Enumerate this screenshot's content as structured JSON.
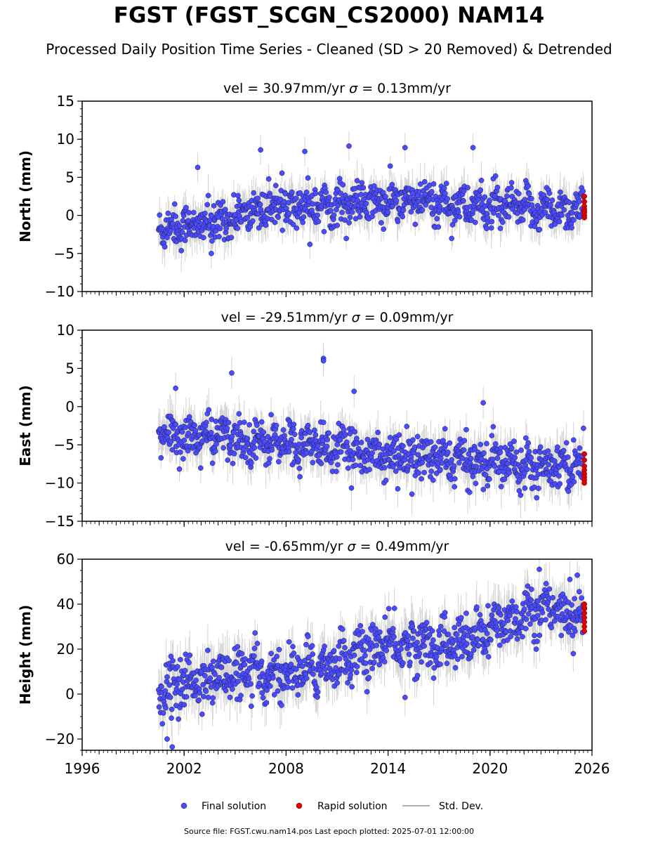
{
  "title": "FGST (FGST_SCGN_CS2000) NAM14",
  "subtitle": "Processed Daily Position Time Series - Cleaned (SD > 20 Removed) & Detrended",
  "footer": "Source file: FGST.cwu.nam14.pos  Last epoch plotted: 2025-07-01 12:00:00",
  "legend": {
    "final": "Final solution",
    "rapid": "Rapid solution",
    "std": "Std. Dev."
  },
  "colors": {
    "final": "#4a4aff",
    "rapid": "#e00000",
    "std": "#b0b0b0",
    "edge": "#202040"
  },
  "chart_data": [
    {
      "type": "scatter",
      "ylabel": "North (mm)",
      "vel_text": "vel = 30.97mm/yr",
      "sigma_text": "= 0.13mm/yr",
      "ylim": [
        -10,
        15
      ],
      "yticks": [
        -10,
        -5,
        0,
        5,
        10,
        15
      ],
      "xlim": [
        1996,
        2026
      ],
      "xticks": [
        1996,
        2002,
        2008,
        2014,
        2020,
        2026
      ],
      "x_start": 2000.5,
      "x_end": 2025.5,
      "trend_knots": [
        [
          2000.5,
          -1.5
        ],
        [
          2003.5,
          -1.2
        ],
        [
          2006.0,
          0.5
        ],
        [
          2008.0,
          1.5
        ],
        [
          2012.0,
          1.5
        ],
        [
          2016.0,
          1.8
        ],
        [
          2020.0,
          1.0
        ],
        [
          2025.5,
          0.8
        ]
      ],
      "noise_sd": 1.3,
      "outliers": [
        [
          2006.5,
          8.6
        ],
        [
          2009.1,
          8.4
        ],
        [
          2011.7,
          9.1
        ],
        [
          2015.0,
          8.9
        ],
        [
          2019.0,
          8.9
        ],
        [
          2002.8,
          6.3
        ],
        [
          2009.4,
          -3.8
        ],
        [
          2003.6,
          -5.0
        ]
      ],
      "rapid": {
        "x": 2025.55,
        "values": [
          2.5,
          1.8,
          1.2,
          0.8,
          0.4,
          0.0,
          -0.3,
          0.5
        ]
      }
    },
    {
      "type": "scatter",
      "ylabel": "East (mm)",
      "vel_text": "vel = -29.51mm/yr",
      "sigma_text": "= 0.09mm/yr",
      "ylim": [
        -15,
        10
      ],
      "yticks": [
        -15,
        -10,
        -5,
        0,
        5,
        10
      ],
      "xlim": [
        1996,
        2026
      ],
      "xticks": [
        1996,
        2002,
        2008,
        2014,
        2020,
        2026
      ],
      "x_start": 2000.5,
      "x_end": 2025.5,
      "trend_knots": [
        [
          2000.5,
          -3.8
        ],
        [
          2004.0,
          -4.0
        ],
        [
          2008.0,
          -4.8
        ],
        [
          2012.0,
          -5.8
        ],
        [
          2016.0,
          -6.8
        ],
        [
          2020.0,
          -7.2
        ],
        [
          2025.5,
          -7.6
        ]
      ],
      "noise_sd": 1.4,
      "outliers": [
        [
          2004.8,
          4.4
        ],
        [
          2010.2,
          6.3
        ],
        [
          2010.2,
          6.0
        ],
        [
          2012.0,
          2.0
        ],
        [
          2001.5,
          2.4
        ],
        [
          2019.6,
          0.5
        ]
      ],
      "rapid": {
        "x": 2025.55,
        "values": [
          -6.2,
          -7.0,
          -7.8,
          -8.3,
          -8.8,
          -9.2,
          -9.6,
          -10.0
        ]
      }
    },
    {
      "type": "scatter",
      "ylabel": "Height (mm)",
      "vel_text": "vel = -0.65mm/yr",
      "sigma_text": "= 0.49mm/yr",
      "ylim": [
        -25,
        60
      ],
      "yticks": [
        -20,
        0,
        20,
        40,
        60
      ],
      "xlim": [
        1996,
        2026
      ],
      "xticks": [
        1996,
        2002,
        2008,
        2014,
        2020,
        2026
      ],
      "x_start": 2000.5,
      "x_end": 2025.5,
      "trend_knots": [
        [
          2000.5,
          2.0
        ],
        [
          2004.0,
          8.0
        ],
        [
          2008.0,
          9.0
        ],
        [
          2010.0,
          12.0
        ],
        [
          2014.0,
          22.0
        ],
        [
          2018.0,
          22.0
        ],
        [
          2020.0,
          28.0
        ],
        [
          2022.5,
          38.0
        ],
        [
          2025.5,
          35.0
        ]
      ],
      "noise_sd": 5.5,
      "outliers": [
        [
          2001.0,
          -20.0
        ],
        [
          2001.3,
          -23.5
        ],
        [
          2022.9,
          55.5
        ],
        [
          2024.7,
          51.0
        ],
        [
          2015.0,
          -1.5
        ],
        [
          2024.9,
          18.0
        ]
      ],
      "rapid": {
        "x": 2025.55,
        "values": [
          40.0,
          38.0,
          36.0,
          34.0,
          32.0,
          30.0,
          28.0,
          38.5
        ]
      }
    }
  ]
}
